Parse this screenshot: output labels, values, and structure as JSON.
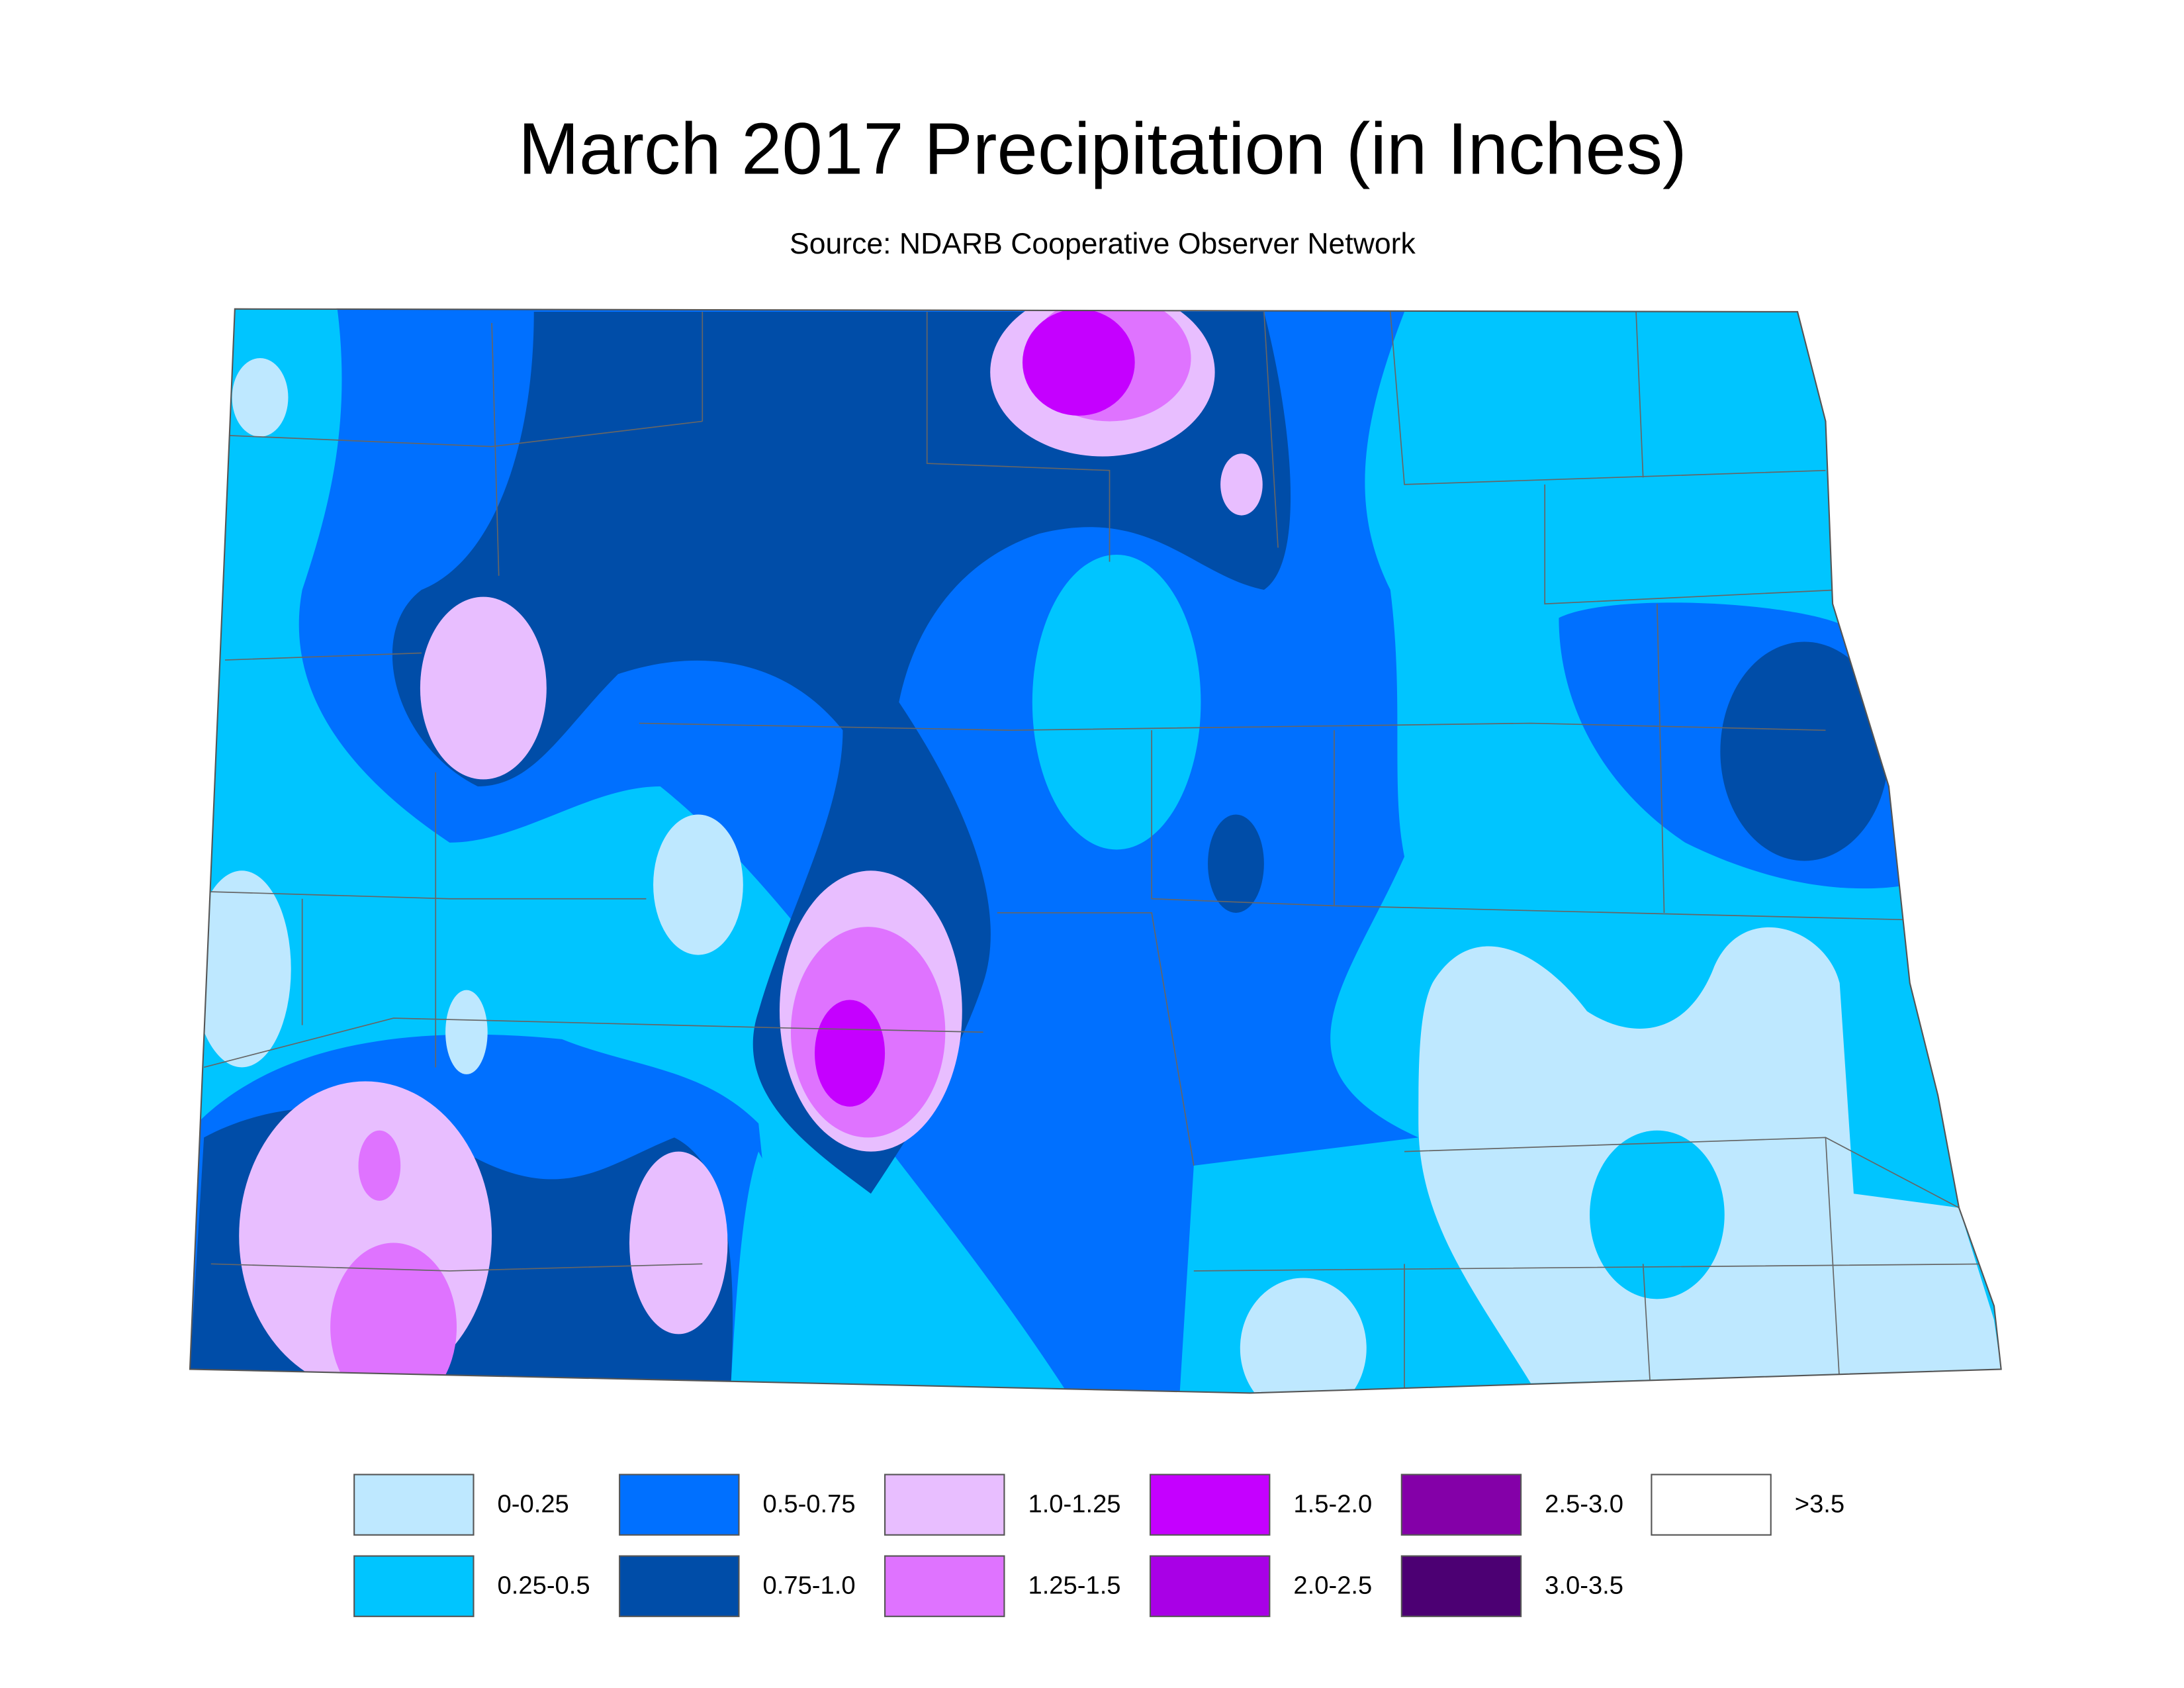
{
  "title": "March 2017 Precipitation (in Inches)",
  "subtitle": "Source: NDARB Cooperative Observer Network",
  "legend": {
    "items": [
      {
        "label": "0-0.25",
        "color": "#bee8ff"
      },
      {
        "label": "0.25-0.5",
        "color": "#00c5ff"
      },
      {
        "label": "0.5-0.75",
        "color": "#0070ff"
      },
      {
        "label": "0.75-1.0",
        "color": "#004da8"
      },
      {
        "label": "1.0-1.25",
        "color": "#e8beff"
      },
      {
        "label": "1.25-1.5",
        "color": "#df73ff"
      },
      {
        "label": "1.5-2.0",
        "color": "#c500ff"
      },
      {
        "label": "2.0-2.5",
        "color": "#a900e6"
      },
      {
        "label": "2.5-3.0",
        "color": "#8400a8"
      },
      {
        "label": "3.0-3.5",
        "color": "#4c0073"
      },
      {
        "label": ">3.5",
        "color": "#ffffff"
      }
    ]
  }
}
